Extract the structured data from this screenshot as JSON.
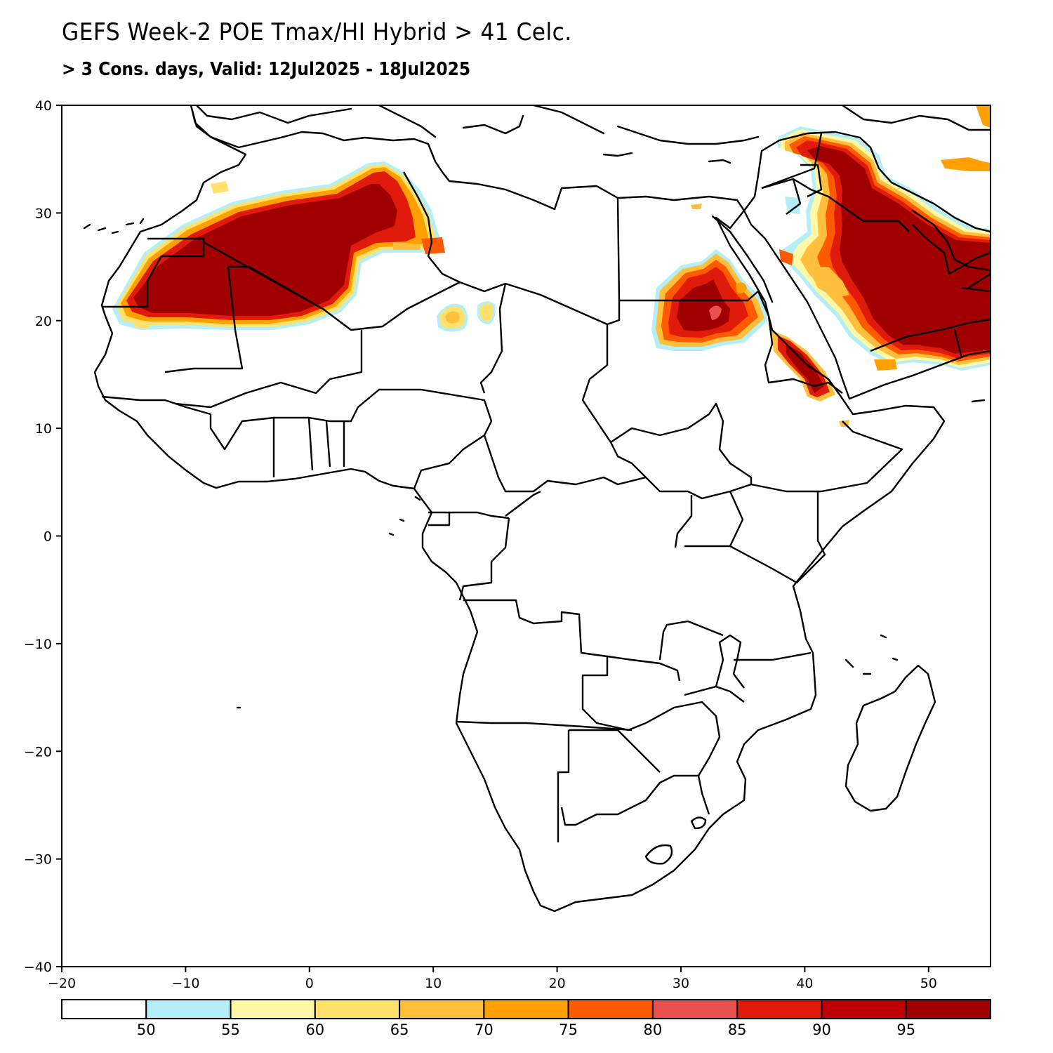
{
  "header": {
    "title": "GEFS Week-2 POE Tmax/HI Hybrid > 41 Celc.",
    "subtitle": "> 3 Cons. days, Valid: 12Jul2025 - 18Jul2025"
  },
  "map": {
    "lon_range": [
      -20,
      55
    ],
    "lat_range": [
      -40,
      40
    ],
    "x_ticks": [
      -20,
      -10,
      0,
      10,
      20,
      30,
      40,
      50
    ],
    "y_ticks": [
      -40,
      -30,
      -20,
      -10,
      0,
      10,
      20,
      30,
      40
    ],
    "x_tick_labels": [
      "−20",
      "−10",
      "0",
      "10",
      "20",
      "30",
      "40",
      "50"
    ],
    "y_tick_labels": [
      "−40",
      "−30",
      "−20",
      "−10",
      "0",
      "10",
      "20",
      "30",
      "40"
    ]
  },
  "colorbar": {
    "levels": [
      50,
      55,
      60,
      65,
      70,
      75,
      80,
      85,
      90,
      95
    ],
    "labels": [
      "50",
      "55",
      "60",
      "65",
      "70",
      "75",
      "80",
      "85",
      "90",
      "95"
    ],
    "colors": [
      "#ffffff",
      "#b4eef8",
      "#fff8a6",
      "#ffe16b",
      "#ffbe3c",
      "#ff9f00",
      "#ff5a00",
      "#e8504e",
      "#e01b0c",
      "#be0003",
      "#a00000"
    ]
  }
}
